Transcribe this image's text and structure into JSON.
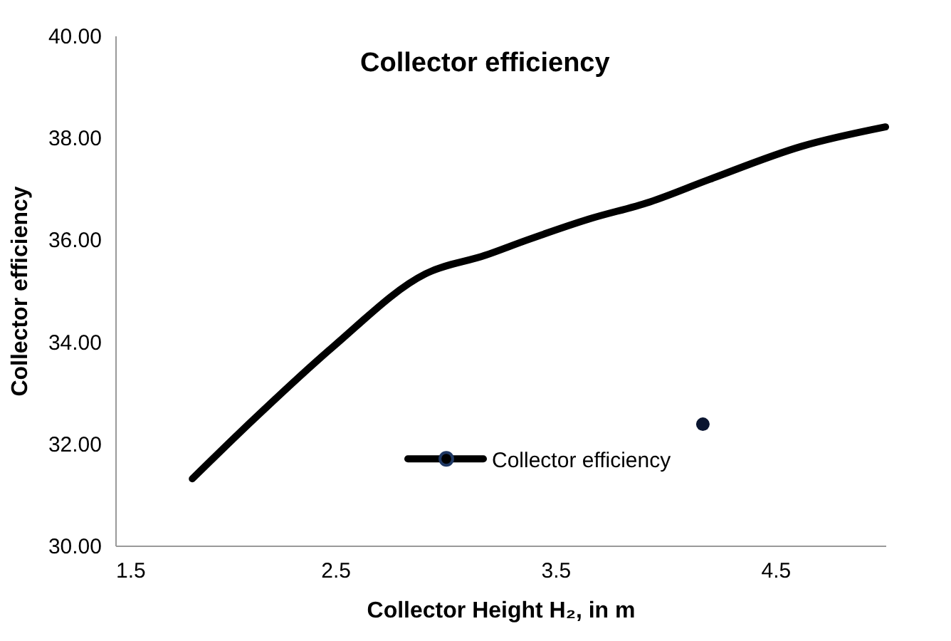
{
  "chart_data": {
    "type": "line",
    "title": "Collector efficiency",
    "xlabel": "Collector Height H₂, in m",
    "ylabel": "Collector efficiency",
    "series": [
      {
        "name": "Collector efficiency",
        "marker": "none",
        "color": "#000000",
        "x": [
          1.85,
          2.13,
          2.49,
          2.91,
          3.18,
          3.37,
          3.65,
          3.93,
          4.2,
          4.62,
          5.0
        ],
        "values": [
          31.31,
          32.48,
          33.9,
          35.33,
          35.69,
          35.99,
          36.4,
          36.74,
          37.18,
          37.83,
          38.21
        ]
      },
      {
        "type": "scatter",
        "marker": "circle",
        "color": "#0a1530",
        "x": [
          4.17
        ],
        "values": [
          32.38
        ]
      }
    ],
    "xlim": [
      1.5,
      5.0
    ],
    "xticks": [
      1.5,
      2.5,
      3.5,
      4.5
    ],
    "ylim": [
      30,
      40
    ],
    "yticks": [
      {
        "value": 30,
        "label": "30.00"
      },
      {
        "value": 32,
        "label": "32.00"
      },
      {
        "value": 34,
        "label": "34.00"
      },
      {
        "value": 36,
        "label": "36.00"
      },
      {
        "value": 38,
        "label": "38.00"
      },
      {
        "value": 40,
        "label": "40.00"
      }
    ],
    "grid": false,
    "legend": "bottom right",
    "line_style": "solid"
  }
}
